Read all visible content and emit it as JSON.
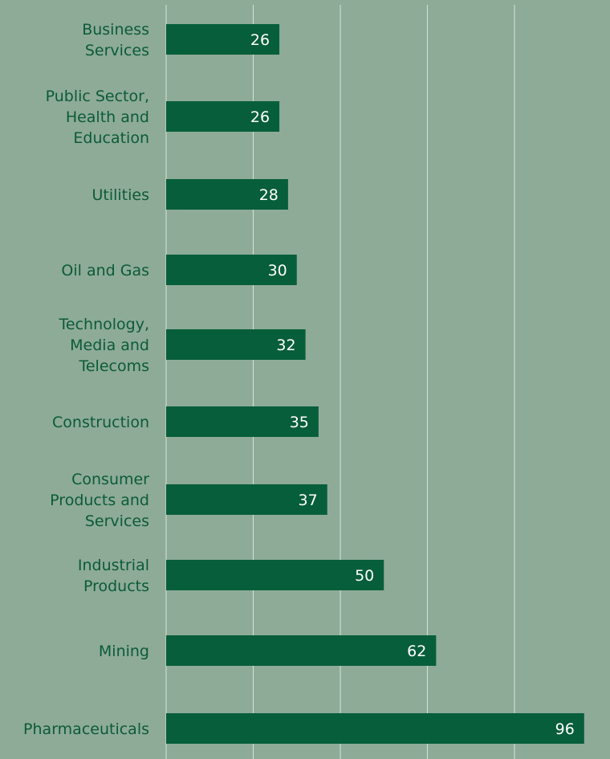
{
  "colors": {
    "background": "#8eab98",
    "bar": "#075e3a",
    "label_text": "#0b5b36",
    "value_text": "#ffffff",
    "gridline": "#d6e2da"
  },
  "chart_data": {
    "type": "bar",
    "orientation": "horizontal",
    "title": "",
    "xlabel": "",
    "ylabel": "",
    "grid": true,
    "legend": "none",
    "xlim": [
      0,
      100
    ],
    "categories": [
      [
        "Business",
        "Services"
      ],
      [
        "Public Sector,",
        "Health and",
        "Education"
      ],
      [
        "Utilities"
      ],
      [
        "Oil and Gas"
      ],
      [
        "Technology,",
        "Media and",
        "Telecoms"
      ],
      [
        "Construction"
      ],
      [
        "Consumer",
        "Products and",
        "Services"
      ],
      [
        "Industrial",
        "Products"
      ],
      [
        "Mining"
      ],
      [
        "Pharmaceuticals"
      ]
    ],
    "values": [
      26,
      26,
      28,
      30,
      32,
      35,
      37,
      50,
      62,
      96
    ],
    "data_labels": [
      "26",
      "26",
      "28",
      "30",
      "32",
      "35",
      "37",
      "50",
      "62",
      "96"
    ]
  }
}
